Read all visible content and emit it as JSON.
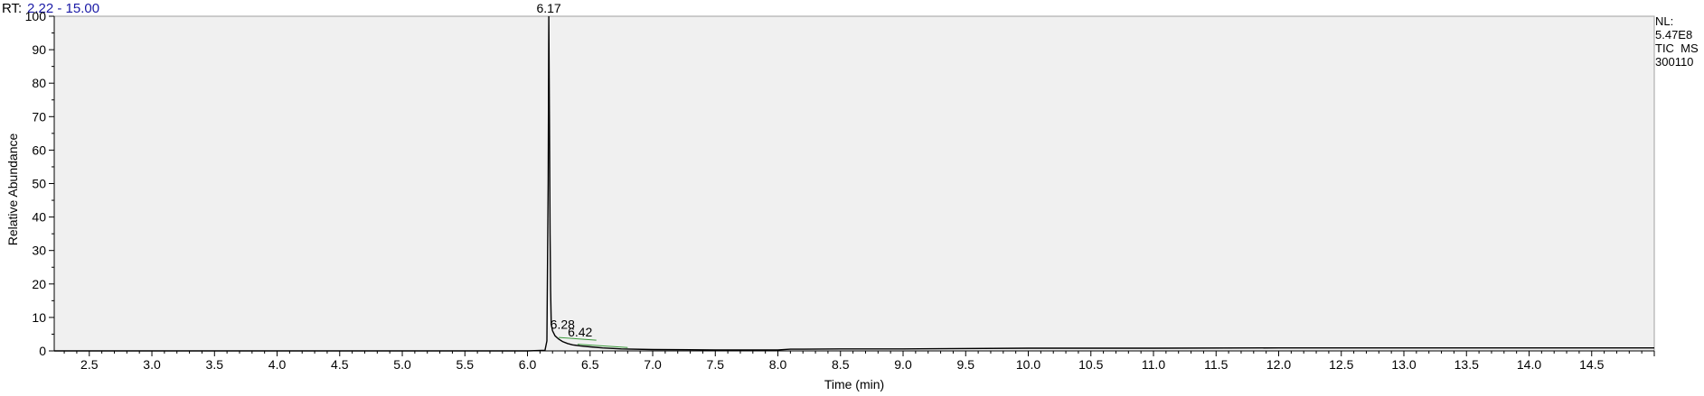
{
  "header": {
    "rt_label": "RT:",
    "rt_range": "2.22 - 15.00"
  },
  "info": {
    "lines": [
      "NL:",
      "5.47E8",
      "TIC  MS",
      "300110"
    ]
  },
  "colors": {
    "background": "#f0f0f0",
    "trace": "#000000",
    "baseline_fit": "#3a9a3a",
    "rt_value": "#1a1aa6"
  },
  "chart_data": {
    "type": "line",
    "title": "",
    "xlabel": "Time (min)",
    "ylabel": "Relative Abundance",
    "xlim": [
      2.22,
      15.0
    ],
    "ylim": [
      0,
      100
    ],
    "x_ticks": [
      "2.5",
      "3.0",
      "3.5",
      "4.0",
      "4.5",
      "5.0",
      "5.5",
      "6.0",
      "6.5",
      "7.0",
      "7.5",
      "8.0",
      "8.5",
      "9.0",
      "9.5",
      "10.0",
      "10.5",
      "11.0",
      "11.5",
      "12.0",
      "12.5",
      "13.0",
      "13.5",
      "14.0",
      "14.5"
    ],
    "y_ticks": [
      "0",
      "10",
      "20",
      "30",
      "40",
      "50",
      "60",
      "70",
      "80",
      "90",
      "100"
    ],
    "series": [
      {
        "x": [
          2.22,
          6.0,
          6.14,
          6.155,
          6.165,
          6.17,
          6.175,
          6.18,
          6.185,
          6.19,
          6.2,
          6.22,
          6.25,
          6.28,
          6.32,
          6.36,
          6.42,
          6.5,
          6.6,
          6.75,
          7.0,
          7.5,
          8.0,
          8.1,
          8.5,
          9.0,
          10.0,
          11.0,
          12.0,
          13.0,
          14.0,
          15.0
        ],
        "y": [
          0,
          0,
          0.2,
          3,
          50,
          100,
          70,
          35,
          18,
          8,
          6,
          4.5,
          3.5,
          2.8,
          2.2,
          1.8,
          1.5,
          1.2,
          0.9,
          0.6,
          0.4,
          0.3,
          0.3,
          0.5,
          0.6,
          0.6,
          0.8,
          0.8,
          0.9,
          0.9,
          0.9,
          0.9
        ]
      }
    ],
    "peak_labels": [
      {
        "x": 6.17,
        "y": 100,
        "text": "6.17"
      },
      {
        "x": 6.28,
        "y": 5.5,
        "text": "6.28"
      },
      {
        "x": 6.42,
        "y": 3.2,
        "text": "6.42"
      }
    ],
    "baseline_fits": [
      {
        "x": [
          6.25,
          6.55
        ],
        "y": [
          4.0,
          3.2
        ]
      },
      {
        "x": [
          6.4,
          6.8
        ],
        "y": [
          2.0,
          1.0
        ]
      }
    ],
    "grid": false,
    "legend": "none"
  }
}
